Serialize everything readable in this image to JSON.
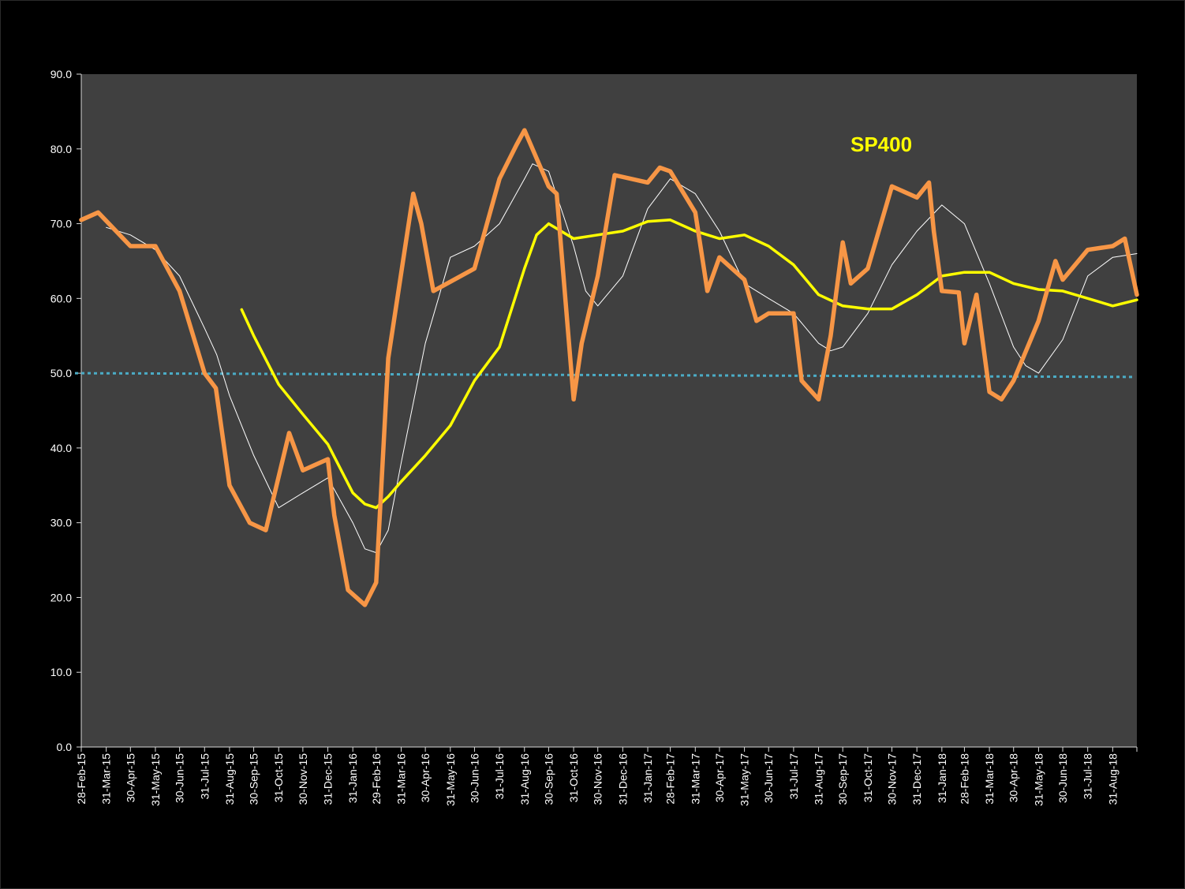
{
  "colors": {
    "background": "#000000",
    "plot_area": "#404040",
    "axis": "#d9d9d9",
    "primary_series": "#f79646",
    "smoothed_series": "#ffffff",
    "moving_average": "#ffff00",
    "reference_line": "#4bacc6",
    "title": "#ffff00",
    "ticks": "#ffffff"
  },
  "chart_data": {
    "type": "line",
    "title": "SP400",
    "xlabel": "",
    "ylabel": "",
    "ylim": [
      0,
      90
    ],
    "yticks": [
      "0.0",
      "10.0",
      "20.0",
      "30.0",
      "40.0",
      "50.0",
      "60.0",
      "70.0",
      "80.0",
      "90.0"
    ],
    "x_start": "28-Feb-15",
    "x_end": "30-Sep-18",
    "x_tick_labels": [
      "28-Feb-15",
      "31-Mar-15",
      "30-Apr-15",
      "31-May-15",
      "30-Jun-15",
      "31-Jul-15",
      "31-Aug-15",
      "30-Sep-15",
      "31-Oct-15",
      "30-Nov-15",
      "31-Dec-15",
      "31-Jan-16",
      "29-Feb-16",
      "31-Mar-16",
      "30-Apr-16",
      "31-May-16",
      "30-Jun-16",
      "31-Jul-16",
      "31-Aug-16",
      "30-Sep-16",
      "31-Oct-16",
      "30-Nov-16",
      "31-Dec-16",
      "31-Jan-17",
      "28-Feb-17",
      "31-Mar-17",
      "30-Apr-17",
      "31-May-17",
      "30-Jun-17",
      "31-Jul-17",
      "31-Aug-17",
      "30-Sep-17",
      "31-Oct-17",
      "30-Nov-17",
      "31-Dec-17",
      "31-Jan-18",
      "28-Feb-18",
      "31-Mar-18",
      "30-Apr-18",
      "31-May-18",
      "30-Jun-18",
      "31-Jul-18",
      "31-Aug-18"
    ],
    "grid": false,
    "legend": "none",
    "series": [
      {
        "style": "thick-orange",
        "x": [
          "28-Feb-15",
          "21-Mar-15",
          "30-Apr-15",
          "31-May-15",
          "30-Jun-15",
          "31-Jul-15",
          "14-Aug-15",
          "31-Aug-15",
          "25-Sep-15",
          "15-Oct-15",
          "13-Nov-15",
          "30-Nov-15",
          "31-Dec-15",
          "08-Jan-16",
          "25-Jan-16",
          "15-Feb-16",
          "29-Feb-16",
          "15-Mar-16",
          "15-Apr-16",
          "25-Apr-16",
          "10-May-16",
          "30-Jun-16",
          "31-Jul-16",
          "21-Aug-16",
          "31-Aug-16",
          "30-Sep-16",
          "10-Oct-16",
          "31-Oct-16",
          "10-Nov-16",
          "30-Nov-16",
          "21-Dec-16",
          "31-Jan-17",
          "15-Feb-17",
          "28-Feb-17",
          "31-Mar-17",
          "15-Apr-17",
          "30-Apr-17",
          "31-May-17",
          "15-Jun-17",
          "30-Jun-17",
          "31-Jul-17",
          "10-Aug-17",
          "31-Aug-17",
          "15-Sep-17",
          "30-Sep-17",
          "10-Oct-17",
          "31-Oct-17",
          "30-Nov-17",
          "31-Dec-17",
          "15-Jan-18",
          "21-Jan-18",
          "31-Jan-18",
          "21-Feb-18",
          "28-Feb-18",
          "15-Mar-18",
          "31-Mar-18",
          "15-Apr-18",
          "30-Apr-18",
          "31-May-18",
          "21-Jun-18",
          "30-Jun-18",
          "31-Jul-18",
          "31-Aug-18",
          "15-Sep-18",
          "21-Sep-18",
          "30-Sep-18"
        ],
        "y": [
          70.5,
          71.5,
          67.0,
          67.0,
          61.0,
          50.0,
          48.0,
          35.0,
          30.0,
          29.0,
          42.0,
          37.0,
          38.5,
          31.0,
          21.0,
          19.0,
          22.0,
          52.0,
          74.0,
          70.0,
          61.0,
          64.0,
          76.0,
          80.5,
          82.5,
          75.0,
          74.0,
          46.5,
          54.0,
          63.0,
          76.5,
          75.5,
          77.5,
          77.0,
          71.5,
          61.0,
          65.5,
          62.5,
          57.0,
          58.0,
          58.0,
          49.0,
          46.5,
          55.0,
          67.5,
          62.0,
          64.0,
          75.0,
          73.5,
          75.5,
          69.0,
          61.0,
          60.8,
          54.0,
          60.5,
          47.5,
          46.5,
          49.0,
          57.0,
          65.0,
          62.5,
          66.5,
          67.0,
          68.0,
          65.0,
          60.5
        ]
      },
      {
        "style": "thin-white",
        "x": [
          "31-Mar-15",
          "30-Apr-15",
          "31-May-15",
          "30-Jun-15",
          "31-Jul-15",
          "15-Aug-15",
          "31-Aug-15",
          "30-Sep-15",
          "31-Oct-15",
          "30-Nov-15",
          "31-Dec-15",
          "31-Jan-16",
          "15-Feb-16",
          "29-Feb-16",
          "15-Mar-16",
          "31-Mar-16",
          "30-Apr-16",
          "31-May-16",
          "30-Jun-16",
          "31-Jul-16",
          "31-Aug-16",
          "10-Sep-16",
          "30-Sep-16",
          "31-Oct-16",
          "15-Nov-16",
          "30-Nov-16",
          "31-Dec-16",
          "31-Jan-17",
          "28-Feb-17",
          "31-Mar-17",
          "30-Apr-17",
          "31-May-17",
          "30-Jun-17",
          "31-Jul-17",
          "31-Aug-17",
          "15-Sep-17",
          "30-Sep-17",
          "31-Oct-17",
          "30-Nov-17",
          "31-Dec-17",
          "31-Jan-18",
          "28-Feb-18",
          "31-Mar-18",
          "30-Apr-18",
          "15-May-18",
          "31-May-18",
          "30-Jun-18",
          "31-Jul-18",
          "31-Aug-18",
          "30-Sep-18"
        ],
        "y": [
          69.5,
          68.5,
          66.5,
          63.0,
          56.0,
          52.5,
          47.0,
          39.0,
          32.0,
          34.0,
          36.0,
          30.0,
          26.5,
          26.0,
          29.0,
          38.0,
          54.0,
          65.5,
          67.0,
          70.0,
          76.0,
          78.0,
          77.0,
          67.0,
          61.0,
          59.0,
          63.0,
          72.0,
          76.0,
          74.0,
          69.0,
          62.0,
          60.0,
          58.0,
          54.0,
          53.0,
          53.5,
          58.0,
          64.5,
          69.0,
          72.5,
          70.0,
          62.0,
          53.5,
          51.0,
          50.0,
          54.5,
          63.0,
          65.5,
          66.0
        ]
      },
      {
        "style": "yellow-average",
        "x": [
          "15-Sep-15",
          "30-Sep-15",
          "31-Oct-15",
          "30-Nov-15",
          "31-Dec-15",
          "31-Jan-16",
          "15-Feb-16",
          "29-Feb-16",
          "15-Mar-16",
          "31-Mar-16",
          "30-Apr-16",
          "31-May-16",
          "30-Jun-16",
          "31-Jul-16",
          "31-Aug-16",
          "15-Sep-16",
          "30-Sep-16",
          "31-Oct-16",
          "30-Nov-16",
          "31-Dec-16",
          "31-Jan-17",
          "28-Feb-17",
          "31-Mar-17",
          "30-Apr-17",
          "31-May-17",
          "30-Jun-17",
          "31-Jul-17",
          "31-Aug-17",
          "30-Sep-17",
          "31-Oct-17",
          "30-Nov-17",
          "31-Dec-17",
          "31-Jan-18",
          "28-Feb-18",
          "31-Mar-18",
          "30-Apr-18",
          "31-May-18",
          "30-Jun-18",
          "31-Jul-18",
          "31-Aug-18",
          "30-Sep-18"
        ],
        "y": [
          58.5,
          55.0,
          48.5,
          44.5,
          40.5,
          34.0,
          32.5,
          32.0,
          33.5,
          35.5,
          39.0,
          43.0,
          49.0,
          53.5,
          64.0,
          68.5,
          70.0,
          68.0,
          68.5,
          69.0,
          70.3,
          70.5,
          69.0,
          68.0,
          68.5,
          67.0,
          64.5,
          60.5,
          59.0,
          58.6,
          58.6,
          60.5,
          63.0,
          63.5,
          63.5,
          62.0,
          61.2,
          61.0,
          60.0,
          59.0,
          59.8
        ]
      }
    ],
    "reference_line": {
      "y_start": 50.0,
      "y_end": 49.5,
      "style": "dotted"
    }
  }
}
